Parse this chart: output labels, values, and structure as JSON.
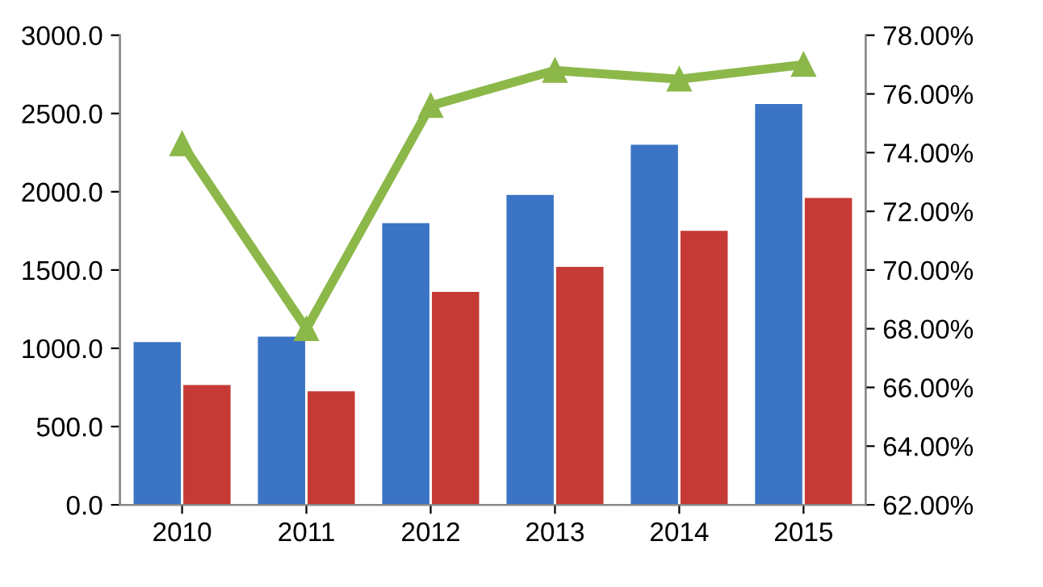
{
  "chart_data": {
    "type": "bar",
    "categories": [
      "2010",
      "2011",
      "2012",
      "2013",
      "2014",
      "2015"
    ],
    "series": [
      {
        "color": "#3b74c4",
        "values": [
          1040,
          1075,
          1800,
          1980,
          2300,
          2560
        ]
      },
      {
        "color": "#c63a36",
        "values": [
          765,
          725,
          1360,
          1520,
          1750,
          1960
        ]
      },
      {
        "type": "line",
        "axis": "y2",
        "color": "#8cb84a",
        "marker": "triangle",
        "values": [
          74.3,
          68.0,
          75.6,
          76.8,
          76.5,
          77.0
        ]
      }
    ],
    "ylim": [
      0,
      3000
    ],
    "yticks": [
      {
        "value": 0,
        "label": "0.0"
      },
      {
        "value": 500,
        "label": "500.0"
      },
      {
        "value": 1000,
        "label": "1000.0"
      },
      {
        "value": 1500,
        "label": "1500.0"
      },
      {
        "value": 2000,
        "label": "2000.0"
      },
      {
        "value": 2500,
        "label": "2500.0"
      },
      {
        "value": 3000,
        "label": "3000.0"
      }
    ],
    "y2lim": [
      62,
      78
    ],
    "y2ticks": [
      {
        "value": 62,
        "label": "62.00%"
      },
      {
        "value": 64,
        "label": "64.00%"
      },
      {
        "value": 66,
        "label": "66.00%"
      },
      {
        "value": 68,
        "label": "68.00%"
      },
      {
        "value": 70,
        "label": "70.00%"
      },
      {
        "value": 72,
        "label": "72.00%"
      },
      {
        "value": 74,
        "label": "74.00%"
      },
      {
        "value": 76,
        "label": "76.00%"
      },
      {
        "value": 78,
        "label": "78.00%"
      }
    ],
    "grid": false,
    "legend": false
  }
}
